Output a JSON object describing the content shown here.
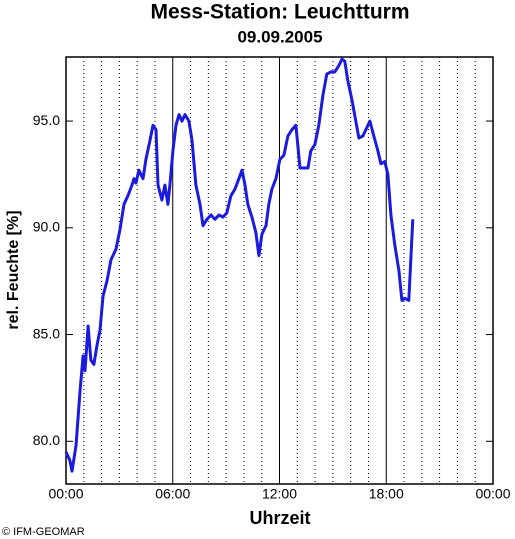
{
  "chart_data": {
    "type": "line",
    "title": "Mess-Station: Leuchtturm",
    "subtitle": "09.09.2005",
    "xlabel": "Uhrzeit",
    "ylabel": "rel. Feuchte [%]",
    "footer": "© IFM-GEOMAR",
    "color": "#1a1ae0",
    "xlim": [
      0,
      24
    ],
    "xticks": [
      {
        "value": 0,
        "label": "00:00"
      },
      {
        "value": 6,
        "label": "06:00"
      },
      {
        "value": 12,
        "label": "12:00"
      },
      {
        "value": 18,
        "label": "18:00"
      },
      {
        "value": 24,
        "label": "00:00"
      }
    ],
    "xminorticks": [
      1,
      2,
      3,
      4,
      5,
      7,
      8,
      9,
      10,
      11,
      13,
      14,
      15,
      16,
      17,
      19,
      20,
      21,
      22,
      23
    ],
    "ylim": [
      78,
      98
    ],
    "yticks": [
      {
        "value": 80,
        "label": "80.0"
      },
      {
        "value": 85,
        "label": "85.0"
      },
      {
        "value": 90,
        "label": "90.0"
      },
      {
        "value": 95,
        "label": "95.0"
      }
    ],
    "grid": true,
    "x": [
      0.0,
      0.22,
      0.34,
      0.56,
      0.79,
      0.96,
      1.07,
      1.24,
      1.4,
      1.57,
      1.74,
      1.91,
      2.08,
      2.3,
      2.53,
      2.81,
      3.03,
      3.26,
      3.48,
      3.71,
      3.82,
      3.93,
      4.1,
      4.33,
      4.49,
      4.72,
      4.89,
      5.06,
      5.17,
      5.39,
      5.56,
      5.73,
      5.84,
      6.01,
      6.18,
      6.35,
      6.52,
      6.69,
      6.91,
      7.08,
      7.3,
      7.53,
      7.7,
      7.92,
      8.15,
      8.37,
      8.6,
      8.82,
      9.04,
      9.27,
      9.49,
      9.72,
      9.89,
      10.06,
      10.22,
      10.45,
      10.67,
      10.84,
      11.01,
      11.24,
      11.4,
      11.57,
      11.8,
      12.02,
      12.25,
      12.47,
      12.7,
      12.92,
      13.15,
      13.37,
      13.6,
      13.76,
      13.99,
      14.21,
      14.44,
      14.66,
      14.89,
      15.11,
      15.34,
      15.51,
      15.67,
      15.84,
      16.07,
      16.29,
      16.46,
      16.69,
      16.91,
      17.08,
      17.3,
      17.53,
      17.7,
      17.92,
      18.09,
      18.26,
      18.48,
      18.71,
      18.88,
      19.04,
      19.27,
      19.38,
      19.49
    ],
    "values": [
      79.5,
      79.1,
      78.6,
      79.8,
      82.4,
      84.0,
      83.3,
      85.4,
      83.8,
      83.6,
      84.5,
      85.2,
      86.8,
      87.5,
      88.5,
      89.0,
      89.9,
      91.1,
      91.5,
      92.0,
      92.3,
      92.1,
      92.7,
      92.3,
      93.2,
      94.1,
      94.8,
      94.6,
      92.0,
      91.3,
      92.0,
      91.1,
      92.0,
      93.6,
      94.8,
      95.3,
      95.0,
      95.3,
      95.0,
      94.1,
      92.0,
      91.1,
      90.1,
      90.4,
      90.6,
      90.4,
      90.6,
      90.5,
      90.7,
      91.5,
      91.8,
      92.3,
      92.7,
      92.0,
      91.1,
      90.5,
      89.8,
      88.7,
      89.7,
      90.1,
      91.1,
      91.8,
      92.3,
      93.2,
      93.4,
      94.3,
      94.6,
      94.8,
      92.8,
      92.8,
      92.8,
      93.6,
      93.9,
      94.8,
      96.2,
      97.2,
      97.3,
      97.3,
      97.6,
      97.9,
      97.8,
      96.9,
      96.0,
      95.0,
      94.2,
      94.3,
      94.7,
      95.0,
      94.3,
      93.6,
      93.0,
      93.1,
      92.5,
      90.6,
      89.2,
      88.0,
      86.6,
      86.7,
      86.6,
      88.5,
      90.4
    ]
  }
}
